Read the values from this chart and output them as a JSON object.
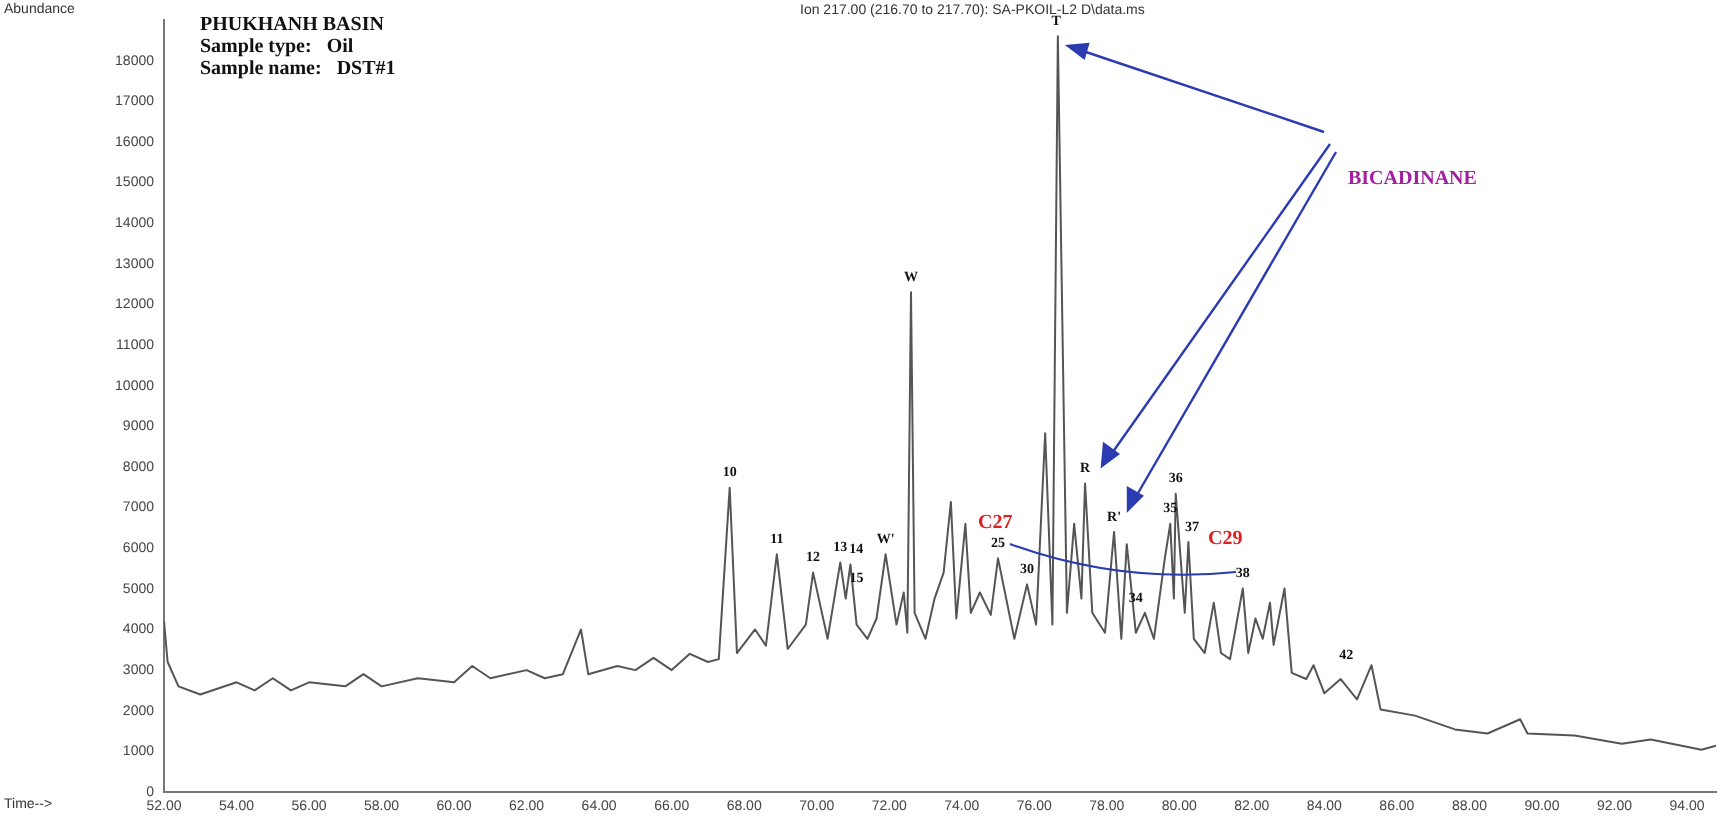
{
  "chart_data": {
    "type": "line",
    "title": "PHUKHANH BASIN",
    "xlabel": "Time-->",
    "ylabel": "Abundance",
    "annotations": [
      "Sample type:   Oil",
      "Sample name:   DST#1",
      "Ion 217.00 (216.70 to 217.70): SA-PKOIL-L2 D\\data.ms",
      {
        "text": "10",
        "x": 67.6,
        "y": 7490
      },
      {
        "text": "11",
        "x": 68.9,
        "y": 5850
      },
      {
        "text": "12",
        "x": 69.9,
        "y": 5400
      },
      {
        "text": "13",
        "x": 70.65,
        "y": 5650
      },
      {
        "text": "14",
        "x": 70.93,
        "y": 5600
      },
      {
        "text": "15",
        "x": 71.1,
        "y": 4900
      },
      {
        "text": "W'",
        "x": 71.9,
        "y": 5850
      },
      {
        "text": "W",
        "x": 72.6,
        "y": 12300
      },
      {
        "text": "25",
        "x": 75.0,
        "y": 5750
      },
      "C27",
      {
        "text": "30",
        "x": 75.8,
        "y": 5110
      },
      {
        "text": "T",
        "x": 76.6,
        "y": 18600
      },
      {
        "text": "R",
        "x": 77.4,
        "y": 7590
      },
      {
        "text": "R'",
        "x": 78.2,
        "y": 6400
      },
      {
        "text": "34",
        "x": 78.8,
        "y": 4400
      },
      {
        "text": "35",
        "x": 79.75,
        "y": 6600
      },
      {
        "text": "36",
        "x": 79.9,
        "y": 7340
      },
      {
        "text": "37",
        "x": 80.35,
        "y": 6150
      },
      "C29",
      {
        "text": "38",
        "x": 81.75,
        "y": 5010
      },
      {
        "text": "42",
        "x": 84.6,
        "y": 3000
      },
      "BICADINANE"
    ],
    "xlim": [
      52,
      94.8
    ],
    "ylim": [
      0,
      19000
    ],
    "xticks": [
      {
        "value": 52,
        "label": "52.00"
      },
      {
        "value": 54,
        "label": "54.00"
      },
      {
        "value": 56,
        "label": "56.00"
      },
      {
        "value": 58,
        "label": "58.00"
      },
      {
        "value": 60,
        "label": "60.00"
      },
      {
        "value": 62,
        "label": "62.00"
      },
      {
        "value": 64,
        "label": "64.00"
      },
      {
        "value": 66,
        "label": "66.00"
      },
      {
        "value": 68,
        "label": "68.00"
      },
      {
        "value": 70,
        "label": "70.00"
      },
      {
        "value": 72,
        "label": "72.00"
      },
      {
        "value": 74,
        "label": "74.00"
      },
      {
        "value": 76,
        "label": "76.00"
      },
      {
        "value": 78,
        "label": "78.00"
      },
      {
        "value": 80,
        "label": "80.00"
      },
      {
        "value": 82,
        "label": "82.00"
      },
      {
        "value": 84,
        "label": "84.00"
      },
      {
        "value": 86,
        "label": "86.00"
      },
      {
        "value": 88,
        "label": "88.00"
      },
      {
        "value": 90,
        "label": "90.00"
      },
      {
        "value": 92,
        "label": "92.00"
      },
      {
        "value": 94,
        "label": "94.00"
      }
    ],
    "yticks": [
      0,
      1000,
      2000,
      3000,
      4000,
      5000,
      6000,
      7000,
      8000,
      9000,
      10000,
      11000,
      12000,
      13000,
      14000,
      15000,
      16000,
      17000,
      18000
    ],
    "grid": false,
    "legend": false,
    "marker": "none",
    "line_style": "solid",
    "series": [
      {
        "color": "#555555",
        "x": [
          52.0,
          52.1,
          52.4,
          53,
          54,
          54.5,
          55,
          55.5,
          56,
          57,
          57.5,
          58,
          59,
          60,
          60.5,
          61,
          62,
          62.5,
          63,
          63.5,
          63.7,
          64.5,
          65,
          65.5,
          66,
          66.5,
          67,
          67.3,
          67.6,
          67.8,
          68.3,
          68.6,
          68.9,
          69.2,
          69.7,
          69.9,
          70.3,
          70.65,
          70.8,
          70.93,
          71.1,
          71.4,
          71.65,
          71.9,
          72.2,
          72.4,
          72.5,
          72.6,
          72.7,
          73.0,
          73.25,
          73.5,
          73.7,
          73.85,
          74.1,
          74.25,
          74.5,
          74.8,
          75.0,
          75.45,
          75.8,
          76.05,
          76.3,
          76.5,
          76.65,
          76.9,
          77.1,
          77.3,
          77.4,
          77.6,
          77.95,
          78.2,
          78.4,
          78.55,
          78.8,
          79.05,
          79.3,
          79.6,
          79.75,
          79.85,
          79.9,
          80.15,
          80.25,
          80.4,
          80.7,
          80.95,
          81.15,
          81.4,
          81.75,
          81.9,
          82.1,
          82.3,
          82.5,
          82.6,
          82.9,
          83.1,
          83.5,
          83.7,
          84.0,
          84.45,
          84.9,
          85.3,
          85.55,
          86.5,
          87.6,
          88.5,
          89.4,
          89.6,
          90.9,
          92.2,
          93.0,
          94.4,
          94.8
        ],
        "values": [
          4200,
          3200,
          2600,
          2400,
          2700,
          2500,
          2800,
          2500,
          2700,
          2600,
          2900,
          2600,
          2800,
          2700,
          3100,
          2800,
          3000,
          2800,
          2900,
          4000,
          2900,
          3100,
          3000,
          3300,
          3000,
          3400,
          3200,
          3270,
          7490,
          3420,
          4000,
          3600,
          5850,
          3520,
          4120,
          5400,
          3770,
          5650,
          4760,
          5600,
          4120,
          3770,
          4270,
          5850,
          4120,
          4910,
          3920,
          12300,
          4410,
          3770,
          4760,
          5400,
          7140,
          4270,
          6600,
          4410,
          4910,
          4360,
          5750,
          3770,
          5110,
          4120,
          8830,
          4120,
          18600,
          4410,
          6600,
          4760,
          7590,
          4410,
          3920,
          6400,
          3770,
          6100,
          3920,
          4410,
          3770,
          5750,
          6600,
          4760,
          7340,
          4410,
          6150,
          3770,
          3420,
          4660,
          3420,
          3270,
          5010,
          3420,
          4270,
          3770,
          4660,
          3620,
          5010,
          2930,
          2780,
          3120,
          2430,
          2780,
          2280,
          3120,
          2030,
          1880,
          1540,
          1440,
          1790,
          1440,
          1390,
          1190,
          1290,
          1040,
          1140
        ]
      }
    ]
  }
}
